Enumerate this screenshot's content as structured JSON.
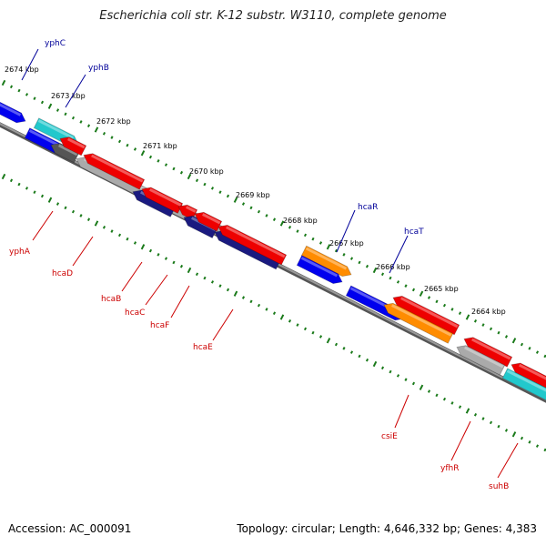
{
  "title": "Escherichia coli str. K-12 substr. W3110, complete genome",
  "footer": {
    "accession": "Accession: AC_000091",
    "topology": "Topology: circular; Length: 4,646,332 bp; Genes: 4,383"
  },
  "colors": {
    "red": "#ee0000",
    "blue": "#0000ee",
    "cyan": "#22c8cc",
    "orange": "#ff8c00",
    "gray": "#aaaaaa",
    "darkgray": "#555555",
    "navy": "#1a1a80",
    "backbone": "#777777",
    "ticks": "#1a7a1a",
    "label_red": "#cc0000",
    "label_blue": "#000099"
  },
  "kbp_labels": [
    "2674 kbp",
    "2673 kbp",
    "2672 kbp",
    "2671 kbp",
    "2670 kbp",
    "2669 kbp",
    "2668 kbp",
    "2667 kbp",
    "2666 kbp",
    "2665 kbp",
    "2664 kbp"
  ],
  "gene_labels_top": [
    "yphC",
    "yphB",
    "hcaR",
    "hcaT"
  ],
  "gene_labels_bottom": [
    "yphA",
    "hcaD",
    "hcaB",
    "hcaC",
    "hcaF",
    "hcaE",
    "csiE",
    "yfhR",
    "suhB"
  ]
}
